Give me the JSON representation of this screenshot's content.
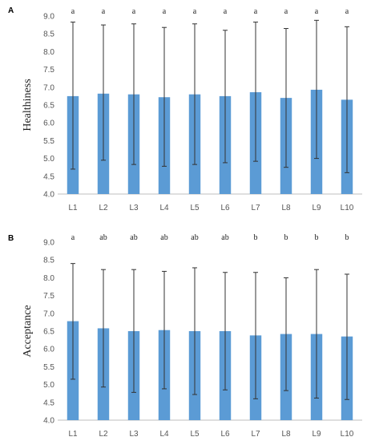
{
  "chart_data": [
    {
      "panel_label": "A",
      "type": "bar",
      "ylabel": "Healthiness",
      "ylim": [
        4.0,
        9.0
      ],
      "yticks": [
        "4.0",
        "4.5",
        "5.0",
        "5.5",
        "6.0",
        "6.5",
        "7.0",
        "7.5",
        "8.0",
        "8.5",
        "9.0"
      ],
      "categories": [
        "L1",
        "L2",
        "L3",
        "L4",
        "L5",
        "L6",
        "L7",
        "L8",
        "L9",
        "L10"
      ],
      "values": [
        6.75,
        6.82,
        6.8,
        6.72,
        6.8,
        6.75,
        6.86,
        6.7,
        6.93,
        6.65
      ],
      "error_upper": [
        8.83,
        8.75,
        8.78,
        8.68,
        8.78,
        8.6,
        8.83,
        8.65,
        8.88,
        8.7
      ],
      "error_lower": [
        4.7,
        4.95,
        4.83,
        4.78,
        4.83,
        4.88,
        4.92,
        4.75,
        5.0,
        4.6
      ],
      "significance": [
        "a",
        "a",
        "a",
        "a",
        "a",
        "a",
        "a",
        "a",
        "a",
        "a"
      ],
      "bar_color": "#5b9bd5"
    },
    {
      "panel_label": "B",
      "type": "bar",
      "ylabel": "Acceptance",
      "ylim": [
        4.0,
        9.0
      ],
      "yticks": [
        "4.0",
        "4.5",
        "5.0",
        "5.5",
        "6.0",
        "6.5",
        "7.0",
        "7.5",
        "8.0",
        "8.5",
        "9.0"
      ],
      "categories": [
        "L1",
        "L2",
        "L3",
        "L4",
        "L5",
        "L6",
        "L7",
        "L8",
        "L9",
        "L10"
      ],
      "values": [
        6.78,
        6.58,
        6.5,
        6.53,
        6.5,
        6.5,
        6.38,
        6.42,
        6.42,
        6.35
      ],
      "error_upper": [
        8.4,
        8.23,
        8.23,
        8.18,
        8.28,
        8.15,
        8.15,
        8.0,
        8.23,
        8.1
      ],
      "error_lower": [
        5.15,
        4.93,
        4.78,
        4.88,
        4.72,
        4.85,
        4.6,
        4.83,
        4.62,
        4.58
      ],
      "significance": [
        "a",
        "ab",
        "ab",
        "ab",
        "ab",
        "ab",
        "b",
        "b",
        "b",
        "b"
      ],
      "bar_color": "#5b9bd5"
    }
  ]
}
